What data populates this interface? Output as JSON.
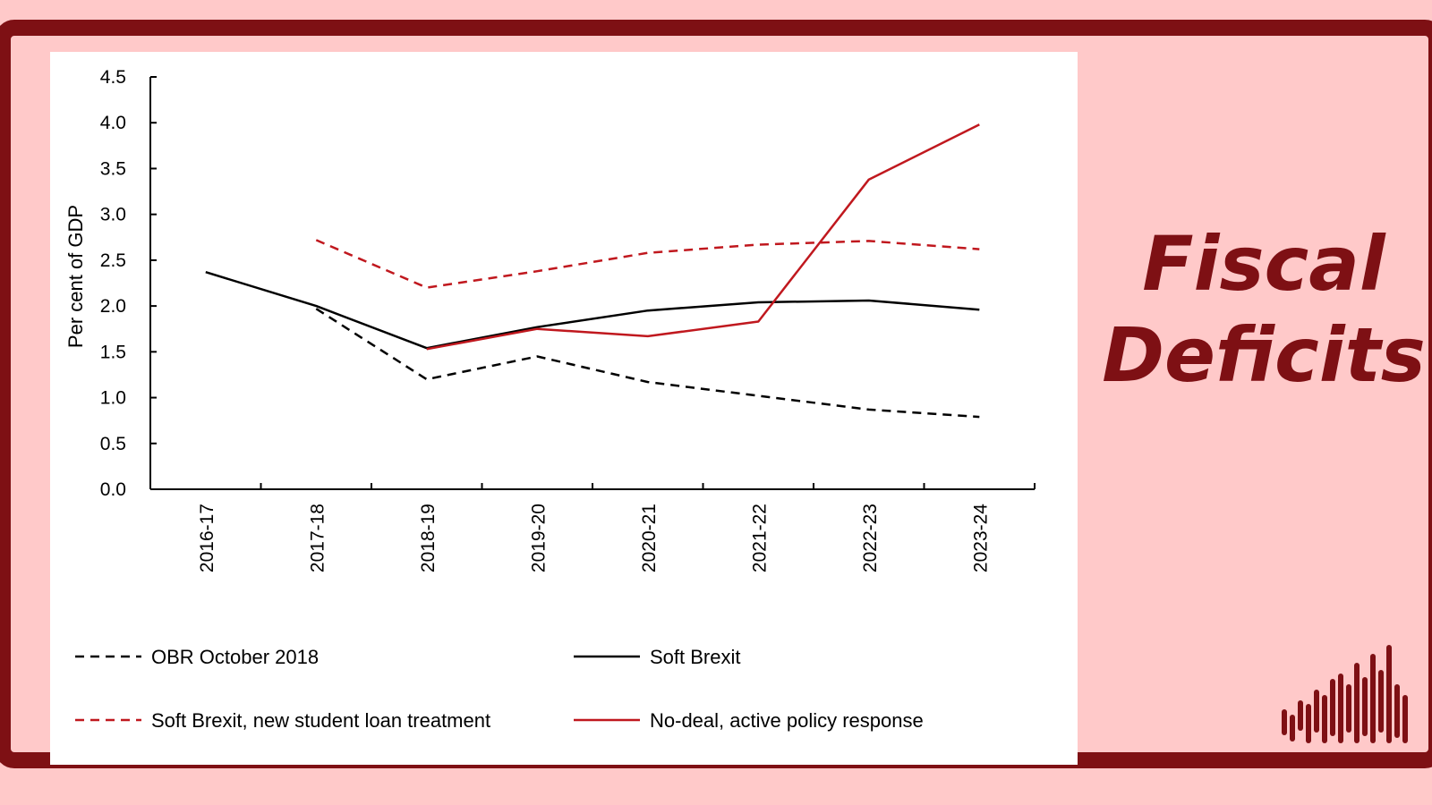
{
  "headline": {
    "line1": "Fiscal",
    "line2": "Deficits"
  },
  "colors": {
    "frame": "#7e1014",
    "background": "#ffc9c9",
    "red_series": "#c0181e",
    "black_series": "#000000"
  },
  "icons": {
    "logo": "bar-waveform-logo-icon"
  },
  "chart_data": {
    "type": "line",
    "title": "",
    "xlabel": "",
    "ylabel": "Per cent of GDP",
    "ylim": [
      0,
      4.5
    ],
    "yticks": [
      "0.0",
      "0.5",
      "1.0",
      "1.5",
      "2.0",
      "2.5",
      "3.0",
      "3.5",
      "4.0",
      "4.5"
    ],
    "categories": [
      "2016-17",
      "2017-18",
      "2018-19",
      "2019-20",
      "2020-21",
      "2021-22",
      "2022-23",
      "2023-24"
    ],
    "grid": false,
    "legend_position": "bottom",
    "series": [
      {
        "name": "OBR October 2018",
        "color": "#000000",
        "dashed": true,
        "values": [
          null,
          1.97,
          1.2,
          1.45,
          1.17,
          1.02,
          0.87,
          0.79
        ]
      },
      {
        "name": "Soft Brexit",
        "color": "#000000",
        "dashed": false,
        "values": [
          2.37,
          2.0,
          1.54,
          1.77,
          1.95,
          2.04,
          2.06,
          1.96
        ]
      },
      {
        "name": "Soft Brexit, new student loan treatment",
        "color": "#c0181e",
        "dashed": true,
        "values": [
          null,
          2.72,
          2.2,
          2.38,
          2.58,
          2.67,
          2.71,
          2.62
        ]
      },
      {
        "name": "No-deal, active policy response",
        "color": "#c0181e",
        "dashed": false,
        "values": [
          null,
          null,
          1.53,
          1.75,
          1.67,
          1.83,
          3.38,
          3.98
        ]
      }
    ]
  }
}
